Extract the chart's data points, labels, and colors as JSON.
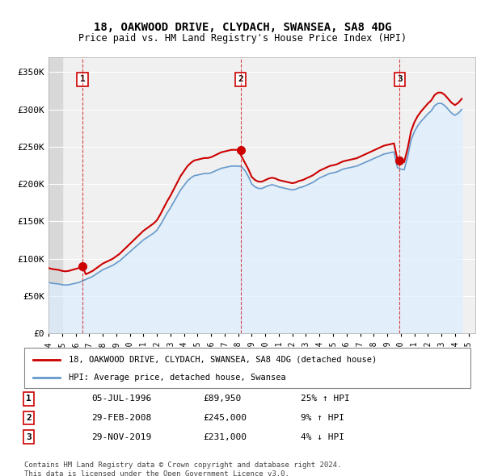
{
  "title": "18, OAKWOOD DRIVE, CLYDACH, SWANSEA, SA8 4DG",
  "subtitle": "Price paid vs. HM Land Registry's House Price Index (HPI)",
  "ylabel_ticks": [
    "£0",
    "£50K",
    "£100K",
    "£150K",
    "£200K",
    "£250K",
    "£300K",
    "£350K"
  ],
  "ytick_vals": [
    0,
    50000,
    100000,
    150000,
    200000,
    250000,
    300000,
    350000
  ],
  "ylim": [
    0,
    370000
  ],
  "xlim_start": 1994.0,
  "xlim_end": 2025.5,
  "background_color": "#ffffff",
  "plot_bg_color": "#f0f0f0",
  "grid_color": "#ffffff",
  "hatch_color": "#d8d8d8",
  "sale_color": "#cc0000",
  "hpi_color": "#6699cc",
  "sale_marker_color": "#cc0000",
  "legend_sale_label": "18, OAKWOOD DRIVE, CLYDACH, SWANSEA, SA8 4DG (detached house)",
  "legend_hpi_label": "HPI: Average price, detached house, Swansea",
  "sales": [
    {
      "year": 1996.5,
      "price": 89950,
      "label": "1",
      "date": "05-JUL-1996",
      "pct": "25% ↑ HPI"
    },
    {
      "year": 2008.17,
      "price": 245000,
      "label": "2",
      "date": "29-FEB-2008",
      "pct": "9% ↑ HPI"
    },
    {
      "year": 2019.92,
      "price": 231000,
      "label": "3",
      "date": "29-NOV-2019",
      "pct": "4% ↓ HPI"
    }
  ],
  "footer": "Contains HM Land Registry data © Crown copyright and database right 2024.\nThis data is licensed under the Open Government Licence v3.0.",
  "hpi_data": {
    "years": [
      1994.0,
      1994.25,
      1994.5,
      1994.75,
      1995.0,
      1995.25,
      1995.5,
      1995.75,
      1996.0,
      1996.25,
      1996.5,
      1996.75,
      1997.0,
      1997.25,
      1997.5,
      1997.75,
      1998.0,
      1998.25,
      1998.5,
      1998.75,
      1999.0,
      1999.25,
      1999.5,
      1999.75,
      2000.0,
      2000.25,
      2000.5,
      2000.75,
      2001.0,
      2001.25,
      2001.5,
      2001.75,
      2002.0,
      2002.25,
      2002.5,
      2002.75,
      2003.0,
      2003.25,
      2003.5,
      2003.75,
      2004.0,
      2004.25,
      2004.5,
      2004.75,
      2005.0,
      2005.25,
      2005.5,
      2005.75,
      2006.0,
      2006.25,
      2006.5,
      2006.75,
      2007.0,
      2007.25,
      2007.5,
      2007.75,
      2008.0,
      2008.25,
      2008.5,
      2008.75,
      2009.0,
      2009.25,
      2009.5,
      2009.75,
      2010.0,
      2010.25,
      2010.5,
      2010.75,
      2011.0,
      2011.25,
      2011.5,
      2011.75,
      2012.0,
      2012.25,
      2012.5,
      2012.75,
      2013.0,
      2013.25,
      2013.5,
      2013.75,
      2014.0,
      2014.25,
      2014.5,
      2014.75,
      2015.0,
      2015.25,
      2015.5,
      2015.75,
      2016.0,
      2016.25,
      2016.5,
      2016.75,
      2017.0,
      2017.25,
      2017.5,
      2017.75,
      2018.0,
      2018.25,
      2018.5,
      2018.75,
      2019.0,
      2019.25,
      2019.5,
      2019.75,
      2020.0,
      2020.25,
      2020.5,
      2020.75,
      2021.0,
      2021.25,
      2021.5,
      2021.75,
      2022.0,
      2022.25,
      2022.5,
      2022.75,
      2023.0,
      2023.25,
      2023.5,
      2023.75,
      2024.0,
      2024.25,
      2024.5
    ],
    "values": [
      68000,
      67000,
      66500,
      66000,
      65000,
      64500,
      65000,
      66000,
      67000,
      68000,
      70000,
      72000,
      74000,
      76000,
      79000,
      82000,
      85000,
      87000,
      89000,
      91000,
      94000,
      97000,
      101000,
      105000,
      109000,
      113000,
      117000,
      121000,
      125000,
      128000,
      131000,
      134000,
      138000,
      145000,
      153000,
      161000,
      168000,
      176000,
      184000,
      192000,
      198000,
      204000,
      208000,
      211000,
      212000,
      213000,
      214000,
      214000,
      215000,
      217000,
      219000,
      221000,
      222000,
      223000,
      224000,
      224000,
      224000,
      223000,
      218000,
      210000,
      200000,
      196000,
      194000,
      194000,
      196000,
      198000,
      199000,
      198000,
      196000,
      195000,
      194000,
      193000,
      192000,
      193000,
      195000,
      196000,
      198000,
      200000,
      202000,
      205000,
      208000,
      210000,
      212000,
      214000,
      215000,
      216000,
      218000,
      220000,
      221000,
      222000,
      223000,
      224000,
      226000,
      228000,
      230000,
      232000,
      234000,
      236000,
      238000,
      240000,
      241000,
      242000,
      243000,
      222000,
      220000,
      219000,
      236000,
      258000,
      270000,
      278000,
      284000,
      289000,
      294000,
      298000,
      305000,
      308000,
      308000,
      305000,
      300000,
      295000,
      292000,
      295000,
      300000
    ]
  },
  "sale_hpi_data": {
    "years": [
      1996.5,
      2008.17,
      2019.92
    ],
    "values": [
      72000,
      224000,
      222000
    ]
  }
}
